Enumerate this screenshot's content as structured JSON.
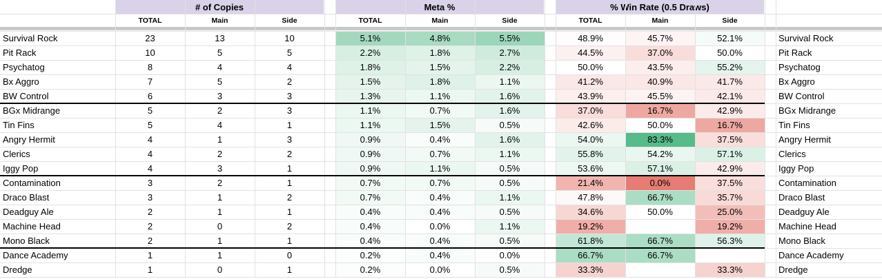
{
  "group_headers": {
    "copies": "# of Copies",
    "meta": "Meta %",
    "winrate": "% Win Rate (0.5 Draws)"
  },
  "sub_headers": [
    "TOTAL",
    "Main",
    "Side",
    "TOTAL",
    "Main",
    "Side",
    "TOTAL",
    "Main",
    "Side"
  ],
  "colors": {
    "header_purple": "#d9d2e9",
    "green_scale": [
      "#ffffff",
      "#57bb8a"
    ],
    "red_scale": [
      "#ffffff",
      "#e67c73"
    ]
  },
  "rows": [
    {
      "name": "Survival Rock",
      "total": "23",
      "main": "13",
      "side": "10",
      "meta_total": "5.1%",
      "meta_main": "4.8%",
      "meta_side": "5.5%",
      "win_total": "48.9%",
      "win_main": "45.7%",
      "win_side": "52.1%"
    },
    {
      "name": "Pit Rack",
      "total": "10",
      "main": "5",
      "side": "5",
      "meta_total": "2.2%",
      "meta_main": "1.8%",
      "meta_side": "2.7%",
      "win_total": "44.5%",
      "win_main": "37.0%",
      "win_side": "50.0%"
    },
    {
      "name": "Psychatog",
      "total": "8",
      "main": "4",
      "side": "4",
      "meta_total": "1.8%",
      "meta_main": "1.5%",
      "meta_side": "2.2%",
      "win_total": "50.0%",
      "win_main": "43.5%",
      "win_side": "55.2%"
    },
    {
      "name": "Bx Aggro",
      "total": "7",
      "main": "5",
      "side": "2",
      "meta_total": "1.5%",
      "meta_main": "1.8%",
      "meta_side": "1.1%",
      "win_total": "41.2%",
      "win_main": "40.9%",
      "win_side": "41.7%"
    },
    {
      "name": "BW Control",
      "total": "6",
      "main": "3",
      "side": "3",
      "meta_total": "1.3%",
      "meta_main": "1.1%",
      "meta_side": "1.6%",
      "win_total": "43.9%",
      "win_main": "45.5%",
      "win_side": "42.1%"
    },
    {
      "name": "BGx Midrange",
      "total": "5",
      "main": "2",
      "side": "3",
      "meta_total": "1.1%",
      "meta_main": "0.7%",
      "meta_side": "1.6%",
      "win_total": "37.0%",
      "win_main": "16.7%",
      "win_side": "42.9%"
    },
    {
      "name": "Tin Fins",
      "total": "5",
      "main": "4",
      "side": "1",
      "meta_total": "1.1%",
      "meta_main": "1.5%",
      "meta_side": "0.5%",
      "win_total": "42.6%",
      "win_main": "50.0%",
      "win_side": "16.7%"
    },
    {
      "name": "Angry Hermit",
      "total": "4",
      "main": "1",
      "side": "3",
      "meta_total": "0.9%",
      "meta_main": "0.4%",
      "meta_side": "1.6%",
      "win_total": "54.0%",
      "win_main": "83.3%",
      "win_side": "37.5%"
    },
    {
      "name": "Clerics",
      "total": "4",
      "main": "2",
      "side": "2",
      "meta_total": "0.9%",
      "meta_main": "0.7%",
      "meta_side": "1.1%",
      "win_total": "55.8%",
      "win_main": "54.2%",
      "win_side": "57.1%"
    },
    {
      "name": "Iggy Pop",
      "total": "4",
      "main": "3",
      "side": "1",
      "meta_total": "0.9%",
      "meta_main": "1.1%",
      "meta_side": "0.5%",
      "win_total": "53.6%",
      "win_main": "57.1%",
      "win_side": "42.9%"
    },
    {
      "name": "Contamination",
      "total": "3",
      "main": "2",
      "side": "1",
      "meta_total": "0.7%",
      "meta_main": "0.7%",
      "meta_side": "0.5%",
      "win_total": "21.4%",
      "win_main": "0.0%",
      "win_side": "37.5%"
    },
    {
      "name": "Draco Blast",
      "total": "3",
      "main": "1",
      "side": "2",
      "meta_total": "0.7%",
      "meta_main": "0.4%",
      "meta_side": "1.1%",
      "win_total": "47.8%",
      "win_main": "66.7%",
      "win_side": "35.7%"
    },
    {
      "name": "Deadguy Ale",
      "total": "2",
      "main": "1",
      "side": "1",
      "meta_total": "0.4%",
      "meta_main": "0.4%",
      "meta_side": "0.5%",
      "win_total": "34.6%",
      "win_main": "50.0%",
      "win_side": "25.0%"
    },
    {
      "name": "Machine Head",
      "total": "2",
      "main": "0",
      "side": "2",
      "meta_total": "0.4%",
      "meta_main": "0.0%",
      "meta_side": "1.1%",
      "win_total": "19.2%",
      "win_main": "",
      "win_side": "19.2%"
    },
    {
      "name": "Mono Black",
      "total": "2",
      "main": "1",
      "side": "1",
      "meta_total": "0.4%",
      "meta_main": "0.4%",
      "meta_side": "0.5%",
      "win_total": "61.8%",
      "win_main": "66.7%",
      "win_side": "56.3%"
    },
    {
      "name": "Dance Academy",
      "total": "1",
      "main": "1",
      "side": "0",
      "meta_total": "0.2%",
      "meta_main": "0.4%",
      "meta_side": "0.0%",
      "win_total": "66.7%",
      "win_main": "66.7%",
      "win_side": ""
    },
    {
      "name": "Dredge",
      "total": "1",
      "main": "0",
      "side": "1",
      "meta_total": "0.2%",
      "meta_main": "0.0%",
      "meta_side": "0.5%",
      "win_total": "33.3%",
      "win_main": "",
      "win_side": "33.3%"
    }
  ]
}
